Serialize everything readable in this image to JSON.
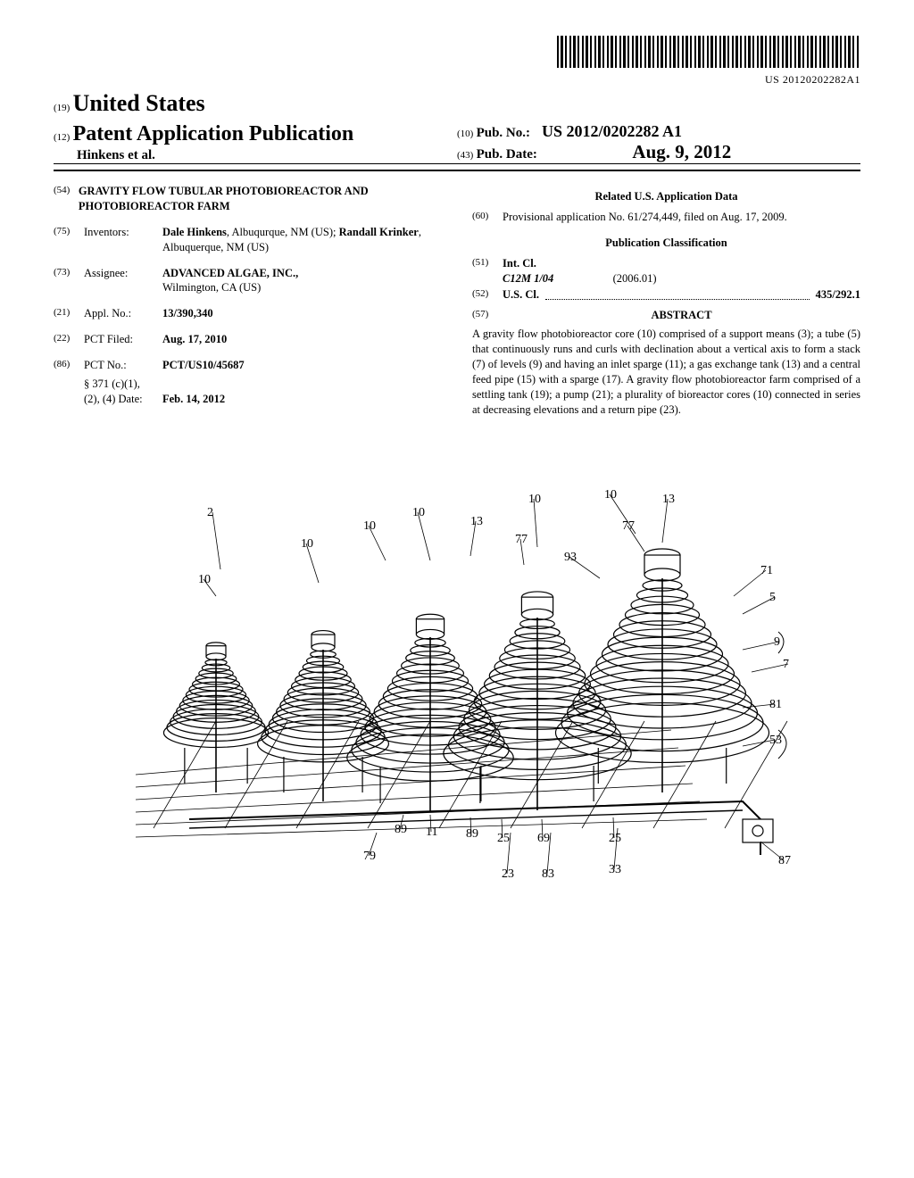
{
  "barcode_number": "US 20120202282A1",
  "header": {
    "ref19": "(19)",
    "country": "United States",
    "ref12": "(12)",
    "pub_type": "Patent Application Publication",
    "authors": "Hinkens et al.",
    "ref10": "(10)",
    "pubno_label": "Pub. No.:",
    "pubno": "US 2012/0202282 A1",
    "ref43": "(43)",
    "pubdate_label": "Pub. Date:",
    "pubdate": "Aug. 9, 2012"
  },
  "left": {
    "f54": {
      "num": "(54)",
      "title": "GRAVITY FLOW TUBULAR PHOTOBIOREACTOR AND PHOTOBIOREACTOR FARM"
    },
    "f75": {
      "num": "(75)",
      "label": "Inventors:",
      "value_html": "Dale Hinkens, Albuqurque, NM (US); Randall Krinker, Albuquerque, NM (US)",
      "inventor1": "Dale Hinkens",
      "loc1": ", Albuqurque, NM (US); ",
      "inventor2": "Randall Krinker",
      "loc2": ", Albuquerque, NM (US)"
    },
    "f73": {
      "num": "(73)",
      "label": "Assignee:",
      "value1": "ADVANCED ALGAE, INC.,",
      "value2": "Wilmington, CA (US)"
    },
    "f21": {
      "num": "(21)",
      "label": "Appl. No.:",
      "value": "13/390,340"
    },
    "f22": {
      "num": "(22)",
      "label": "PCT Filed:",
      "value": "Aug. 17, 2010"
    },
    "f86": {
      "num": "(86)",
      "label": "PCT No.:",
      "value": "PCT/US10/45687",
      "sub1": "§ 371 (c)(1),",
      "sub2": "(2), (4) Date:",
      "subval": "Feb. 14, 2012"
    }
  },
  "right": {
    "related_head": "Related U.S. Application Data",
    "f60": {
      "num": "(60)",
      "value": "Provisional application No. 61/274,449, filed on Aug. 17, 2009."
    },
    "pubclass_head": "Publication Classification",
    "f51": {
      "num": "(51)",
      "label": "Int. Cl.",
      "code": "C12M 1/04",
      "year": "(2006.01)"
    },
    "f52": {
      "num": "(52)",
      "label": "U.S. Cl.",
      "value": "435/292.1"
    },
    "f57": {
      "num": "(57)",
      "label": "ABSTRACT"
    },
    "abstract": "A gravity flow photobioreactor core (10) comprised of a support means (3); a tube (5) that continuously runs and curls with declination about a vertical axis to form a stack (7) of levels (9) and having an inlet sparge (11); a gas exchange tank (13) and a central feed pipe (15) with a sparge (17). A gravity flow photobioreactor farm comprised of a settling tank (19); a pump (21); a plurality of bioreactor cores (10) connected in series at decreasing elevations and a return pipe (23)."
  },
  "figure": {
    "labels": [
      "2",
      "10",
      "10",
      "10",
      "10",
      "10",
      "10",
      "13",
      "13",
      "77",
      "77",
      "93",
      "71",
      "5",
      "9",
      "7",
      "81",
      "53",
      "89",
      "11",
      "89",
      "25",
      "69",
      "25",
      "79",
      "23",
      "83",
      "33",
      "87"
    ],
    "stroke": "#000000",
    "fill": "#ffffff",
    "label_fontsize": 14,
    "label_font": "Times New Roman, serif",
    "line_width": 1.2,
    "num_cores": 5,
    "core_spacing": 130,
    "levels_per_core": 16
  }
}
